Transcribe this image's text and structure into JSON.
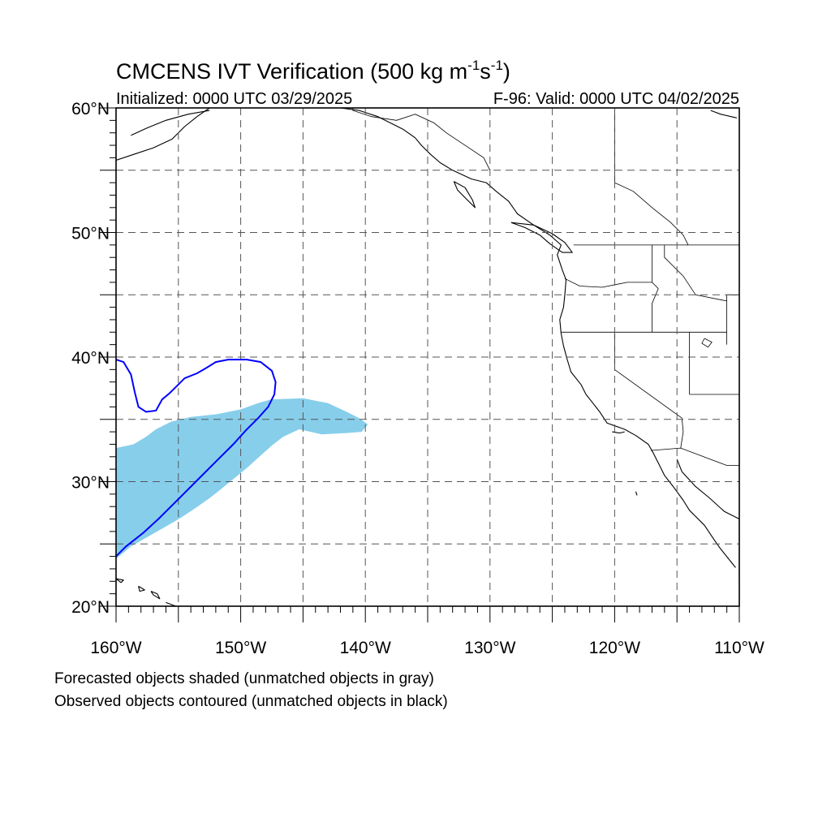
{
  "header": {
    "title": "CMCENS IVT Verification (500 kg m",
    "title_exp1": "-1",
    "title_mid": "s",
    "title_exp2": "-1",
    "title_end": ")",
    "initialized": "Initialized: 0000 UTC 03/29/2025",
    "valid": "F-96: Valid: 0000 UTC 04/02/2025"
  },
  "map": {
    "projection": "cylindrical-equidistant",
    "lon_range": [
      -160,
      -110
    ],
    "lat_range": [
      20,
      60
    ],
    "grid": "dashed",
    "grid_lons": [
      -155,
      -150,
      -145,
      -140,
      -135,
      -130,
      -125,
      -120,
      -115
    ],
    "grid_lats": [
      25,
      30,
      35,
      40,
      45,
      50,
      55
    ],
    "lon_tick_labels": [
      {
        "lon": -160,
        "label": "160°W"
      },
      {
        "lon": -150,
        "label": "150°W"
      },
      {
        "lon": -140,
        "label": "140°W"
      },
      {
        "lon": -130,
        "label": "130°W"
      },
      {
        "lon": -120,
        "label": "120°W"
      },
      {
        "lon": -110,
        "label": "110°W"
      }
    ],
    "lat_tick_labels": [
      {
        "lat": 60,
        "label": "60°N"
      },
      {
        "lat": 50,
        "label": "50°N"
      },
      {
        "lat": 40,
        "label": "40°N"
      },
      {
        "lat": 30,
        "label": "30°N"
      },
      {
        "lat": 20,
        "label": "20°N"
      }
    ],
    "colors": {
      "forecast_fill": "#87ceeb",
      "observed_contour": "#0000ff",
      "coastline": "#000000",
      "grid": "#555555"
    },
    "forecast_object": {
      "name": "forecast-ivt-object",
      "color": "#87ceeb",
      "points": [
        [
          -160,
          23.8
        ],
        [
          -160,
          32.7
        ],
        [
          -158.6,
          33
        ],
        [
          -157.6,
          33.6
        ],
        [
          -156.8,
          34.2
        ],
        [
          -155.6,
          34.8
        ],
        [
          -154,
          35.2
        ],
        [
          -152,
          35.4
        ],
        [
          -150,
          35.8
        ],
        [
          -148.6,
          36.3
        ],
        [
          -147.6,
          36.6
        ],
        [
          -145,
          36.7
        ],
        [
          -143,
          36.3
        ],
        [
          -141.5,
          35.6
        ],
        [
          -140.5,
          35.1
        ],
        [
          -139.8,
          34.6
        ],
        [
          -140.3,
          34.0
        ],
        [
          -141.5,
          33.9
        ],
        [
          -143.5,
          33.8
        ],
        [
          -145.3,
          34.2
        ],
        [
          -146.6,
          33.6
        ],
        [
          -147.5,
          32.9
        ],
        [
          -148.5,
          32
        ],
        [
          -149.5,
          31.1
        ],
        [
          -150.6,
          30.2
        ],
        [
          -151.7,
          29.3
        ],
        [
          -152.6,
          28.6
        ],
        [
          -153.6,
          27.9
        ],
        [
          -154.8,
          27.1
        ],
        [
          -156.0,
          26.4
        ],
        [
          -157.4,
          25.6
        ],
        [
          -158.8,
          24.8
        ],
        [
          -160,
          23.8
        ]
      ]
    },
    "observed_object": {
      "name": "observed-ivt-contour",
      "color": "#0000ff",
      "points": [
        [
          -160,
          39.8
        ],
        [
          -159.4,
          39.6
        ],
        [
          -158.8,
          38.6
        ],
        [
          -158.5,
          37.2
        ],
        [
          -158.2,
          36.0
        ],
        [
          -157.6,
          35.6
        ],
        [
          -156.8,
          35.7
        ],
        [
          -156.3,
          36.6
        ],
        [
          -155.7,
          37.1
        ],
        [
          -155.1,
          37.7
        ],
        [
          -154.5,
          38.3
        ],
        [
          -153.5,
          38.7
        ],
        [
          -152.8,
          39.1
        ],
        [
          -152.0,
          39.6
        ],
        [
          -151.0,
          39.8
        ],
        [
          -149.5,
          39.8
        ],
        [
          -148.4,
          39.6
        ],
        [
          -147.5,
          38.9
        ],
        [
          -147.2,
          38.0
        ],
        [
          -147.3,
          37.0
        ],
        [
          -147.8,
          36.0
        ],
        [
          -148.6,
          35.1
        ],
        [
          -149.6,
          34.1
        ],
        [
          -150.6,
          33.0
        ],
        [
          -151.6,
          32.0
        ],
        [
          -152.6,
          31.0
        ],
        [
          -153.6,
          30.0
        ],
        [
          -154.6,
          29.0
        ],
        [
          -155.6,
          28.0
        ],
        [
          -156.6,
          27.0
        ],
        [
          -157.8,
          25.9
        ],
        [
          -159.2,
          24.8
        ],
        [
          -160,
          24.0
        ]
      ]
    },
    "coastlines": [
      {
        "name": "north-america-west-coast",
        "points": [
          [
            -160,
            55.8
          ],
          [
            -158.5,
            56.3
          ],
          [
            -157,
            56.8
          ],
          [
            -155.5,
            57.5
          ],
          [
            -154.5,
            58.5
          ],
          [
            -153.5,
            59.3
          ],
          [
            -152.5,
            60
          ],
          [
            -150.5,
            60
          ],
          [
            -148,
            60
          ],
          [
            -146,
            60
          ],
          [
            -144,
            60
          ],
          [
            -142,
            60
          ],
          [
            -140.5,
            59.8
          ],
          [
            -139,
            59.3
          ],
          [
            -138,
            58.8
          ],
          [
            -137,
            58.3
          ],
          [
            -136,
            57.6
          ],
          [
            -135.5,
            57
          ],
          [
            -134.8,
            56.3
          ],
          [
            -134,
            55.6
          ],
          [
            -133,
            55
          ],
          [
            -131.5,
            54.3
          ],
          [
            -130.3,
            54
          ],
          [
            -129.5,
            53.3
          ],
          [
            -128.5,
            52.5
          ],
          [
            -127.8,
            51.5
          ],
          [
            -126.5,
            50.6
          ],
          [
            -125.2,
            49.8
          ],
          [
            -124.3,
            49
          ],
          [
            -124.6,
            48.2
          ],
          [
            -124.2,
            47
          ],
          [
            -123.9,
            46.2
          ],
          [
            -124.0,
            45
          ],
          [
            -124.1,
            44
          ],
          [
            -124.4,
            43
          ],
          [
            -124.3,
            41.9
          ],
          [
            -124.1,
            40.9
          ],
          [
            -123.8,
            39.8
          ],
          [
            -123.5,
            38.8
          ],
          [
            -122.7,
            37.8
          ],
          [
            -122.3,
            37
          ],
          [
            -121.9,
            36.5
          ],
          [
            -121.2,
            35.6
          ],
          [
            -120.6,
            34.7
          ],
          [
            -119.2,
            34.2
          ],
          [
            -118.3,
            33.7
          ],
          [
            -117.3,
            33
          ],
          [
            -116.9,
            32.3
          ],
          [
            -116.5,
            31.5
          ],
          [
            -116,
            30.5
          ],
          [
            -115.3,
            29.6
          ],
          [
            -114.5,
            28.5
          ],
          [
            -114,
            27.7
          ],
          [
            -112.8,
            26.5
          ],
          [
            -112,
            25.3
          ],
          [
            -111.5,
            24.6
          ],
          [
            -110.3,
            23.1
          ]
        ]
      },
      {
        "name": "gulf-of-california-east",
        "points": [
          [
            -115,
            31.8
          ],
          [
            -114.6,
            30.8
          ],
          [
            -113.5,
            29.6
          ],
          [
            -112.4,
            28.7
          ],
          [
            -111.2,
            27.6
          ],
          [
            -110,
            27
          ],
          [
            -110,
            22
          ]
        ]
      },
      {
        "name": "vancouver-island",
        "points": [
          [
            -128.3,
            50.8
          ],
          [
            -127.2,
            50.4
          ],
          [
            -126,
            49.8
          ],
          [
            -125.2,
            49.1
          ],
          [
            -124.2,
            48.4
          ],
          [
            -123.4,
            48.4
          ],
          [
            -124,
            49.2
          ],
          [
            -125,
            49.9
          ],
          [
            -126.5,
            50.6
          ],
          [
            -128.3,
            50.8
          ]
        ]
      },
      {
        "name": "haida-gwaii",
        "points": [
          [
            -132.9,
            54.1
          ],
          [
            -132,
            53.6
          ],
          [
            -131.4,
            52.6
          ],
          [
            -131.2,
            52
          ],
          [
            -131.9,
            52.7
          ],
          [
            -132.6,
            53.4
          ],
          [
            -132.9,
            54.1
          ]
        ]
      },
      {
        "name": "kodiak-alaska-peninsula",
        "points": [
          [
            -158.8,
            57.8
          ],
          [
            -157.5,
            58.4
          ],
          [
            -156,
            59
          ],
          [
            -154.2,
            59.5
          ],
          [
            -152.5,
            59.8
          ]
        ]
      },
      {
        "name": "hawaii-island-1",
        "points": [
          [
            -160,
            22.2
          ],
          [
            -159.4,
            22.1
          ],
          [
            -159.6,
            21.9
          ],
          [
            -160,
            22.2
          ]
        ]
      },
      {
        "name": "hawaii-island-2",
        "points": [
          [
            -158.2,
            21.6
          ],
          [
            -157.7,
            21.3
          ],
          [
            -158.1,
            21.2
          ],
          [
            -158.2,
            21.6
          ]
        ]
      },
      {
        "name": "hawaii-island-3",
        "points": [
          [
            -157.2,
            21.2
          ],
          [
            -156.7,
            21.0
          ],
          [
            -156.5,
            20.6
          ],
          [
            -157.0,
            20.9
          ],
          [
            -157.2,
            21.2
          ]
        ]
      },
      {
        "name": "hawaii-island-4",
        "points": [
          [
            -156.0,
            20.3
          ],
          [
            -155.2,
            20.0
          ],
          [
            -155.0,
            20.0
          ]
        ]
      },
      {
        "name": "channel-islands",
        "points": [
          [
            -120.2,
            34.0
          ],
          [
            -119.6,
            33.9
          ],
          [
            -119.2,
            34.0
          ]
        ]
      },
      {
        "name": "guadalupe-island",
        "points": [
          [
            -118.3,
            29.2
          ],
          [
            -118.2,
            28.9
          ]
        ]
      },
      {
        "name": "hudson-river-canada",
        "points": [
          [
            -110.2,
            59.2
          ],
          [
            -111.5,
            59.5
          ],
          [
            -112.3,
            59.8
          ]
        ]
      }
    ],
    "borders": [
      {
        "name": "us-canada-border",
        "points": [
          [
            -123.3,
            49
          ],
          [
            -110,
            49
          ]
        ]
      },
      {
        "name": "alaska-canada-border",
        "points": [
          [
            -141,
            60
          ],
          [
            -141,
            59.8
          ],
          [
            -139.5,
            59.3
          ],
          [
            -137.5,
            59
          ],
          [
            -136,
            59.5
          ],
          [
            -134.5,
            58.8
          ],
          [
            -133.5,
            58
          ],
          [
            -132,
            57
          ],
          [
            -130.5,
            56
          ],
          [
            -130,
            55
          ]
        ]
      },
      {
        "name": "bc-alberta-border",
        "points": [
          [
            -120,
            60
          ],
          [
            -120,
            54
          ],
          [
            -118.5,
            53.3
          ],
          [
            -117,
            52
          ],
          [
            -115.5,
            50.8
          ],
          [
            -114.5,
            49.8
          ],
          [
            -114.1,
            49
          ]
        ]
      },
      {
        "name": "washington-oregon",
        "points": [
          [
            -124,
            46.3
          ],
          [
            -122.8,
            45.7
          ],
          [
            -121,
            45.6
          ],
          [
            -119,
            46
          ],
          [
            -117,
            46
          ]
        ]
      },
      {
        "name": "washington-idaho",
        "points": [
          [
            -117,
            49
          ],
          [
            -117,
            46
          ]
        ]
      },
      {
        "name": "oregon-idaho",
        "points": [
          [
            -117,
            46
          ],
          [
            -116.5,
            45.5
          ],
          [
            -117,
            44.3
          ],
          [
            -117,
            42
          ]
        ]
      },
      {
        "name": "oregon-california-nevada",
        "points": [
          [
            -124.3,
            42
          ],
          [
            -111,
            42
          ]
        ]
      },
      {
        "name": "idaho-montana",
        "points": [
          [
            -116,
            49
          ],
          [
            -116,
            48
          ],
          [
            -114.5,
            46.5
          ],
          [
            -113.5,
            45
          ],
          [
            -111,
            44.5
          ]
        ]
      },
      {
        "name": "montana-wyoming",
        "points": [
          [
            -111,
            45
          ],
          [
            -104,
            45
          ]
        ]
      },
      {
        "name": "wyoming-west",
        "points": [
          [
            -111,
            45
          ],
          [
            -111,
            41
          ]
        ]
      },
      {
        "name": "utah-nevada",
        "points": [
          [
            -114,
            42
          ],
          [
            -114,
            37
          ]
        ]
      },
      {
        "name": "california-nevada",
        "points": [
          [
            -120,
            42
          ],
          [
            -120,
            39
          ],
          [
            -114.6,
            35.1
          ]
        ]
      },
      {
        "name": "utah-arizona",
        "points": [
          [
            -114,
            37
          ],
          [
            -110,
            37
          ]
        ]
      },
      {
        "name": "arizona-california",
        "points": [
          [
            -114.6,
            35.1
          ],
          [
            -114.5,
            34
          ],
          [
            -114.7,
            32.7
          ]
        ]
      },
      {
        "name": "us-mexico-border",
        "points": [
          [
            -117.1,
            32.5
          ],
          [
            -114.7,
            32.7
          ],
          [
            -111,
            31.3
          ],
          [
            -110,
            31.3
          ]
        ]
      },
      {
        "name": "great-salt-lake",
        "points": [
          [
            -112.8,
            41.5
          ],
          [
            -112.2,
            41.2
          ],
          [
            -112.5,
            40.8
          ],
          [
            -113,
            41.1
          ],
          [
            -112.8,
            41.5
          ]
        ]
      }
    ]
  },
  "footer": {
    "line1": "Forecasted objects shaded (unmatched objects in gray)",
    "line2": "Observed objects contoured (unmatched objects in black)"
  }
}
